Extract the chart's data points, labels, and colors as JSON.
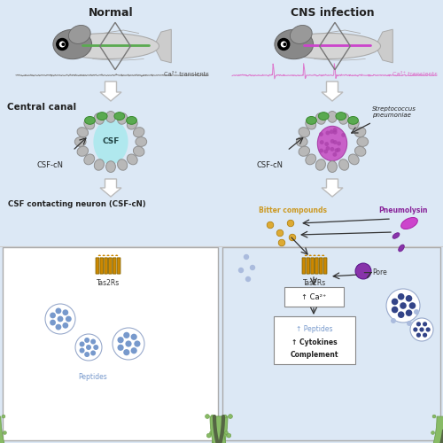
{
  "bg_top": "#dce8f5",
  "bg_white": "#ffffff",
  "title_normal": "Normal",
  "title_cns": "CNS infection",
  "label_central_canal": "Central canal",
  "label_csf": "CSF",
  "label_csfcn_left": "CSF-cN",
  "label_csfcn_right": "CSF-cN",
  "label_streptococcus": "Streptococcus\npneumoniae",
  "label_ca_transients": "Ca²⁺ transients",
  "label_neuron_title": "CSF contacting neuron (CSF-cN)",
  "label_tas2rs_left": "Tas2Rs",
  "label_tas2rs_right": "Tas2Rs",
  "label_pore": "Pore",
  "label_peptides_left": "Peptides",
  "label_bitter": "Bitter compounds",
  "label_pneumolysin": "Pneumolysin",
  "label_ca_up": "↑ Ca²⁺",
  "label_peptides_up": "↑ Peptides",
  "label_cytokines": "↑ Cytokines",
  "label_complement": "Complement",
  "fish_body": "#d5d5d5",
  "fish_body_edge": "#aaaaaa",
  "fish_head": "#888888",
  "fish_head_edge": "#666666",
  "fish_tail_color": "#cccccc",
  "fish_yolk": "#999999",
  "color_green_cell": "#5aaa50",
  "color_green_edge": "#3a8a30",
  "color_cyan_csf": "#b0e8ee",
  "color_purple_bact": "#c860c8",
  "color_purple_bact_dot": "#aa40aa",
  "color_orange_receptor": "#cc8800",
  "color_membrane_green": "#88bb66",
  "color_membrane_dark": "#556644",
  "color_membrane_edge": "#669944",
  "color_blue_vesicle": "#7799cc",
  "color_blue_dots": "#3366aa",
  "color_blue_dark": "#334488",
  "color_gold": "#cc9922",
  "color_gold_dot": "#ddaa33",
  "color_purple_pneum": "#cc44cc",
  "color_purple_pore": "#8833aa",
  "color_arrow_white": "#ffffff",
  "color_arrow_edge": "#bbbbbb"
}
